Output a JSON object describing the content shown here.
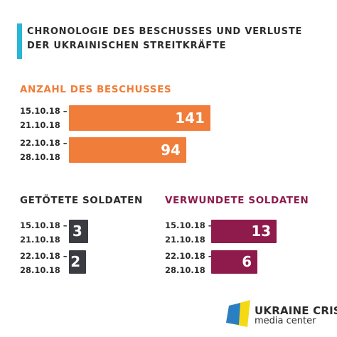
{
  "header": {
    "title_lines": [
      "CHRONOLOGIE DES BESCHUSSES UND VERLUSTE",
      "DER UKRAINISCHEN STREITKRÄFTE"
    ]
  },
  "chart_data": [
    {
      "type": "bar",
      "orientation": "horizontal",
      "title": "ANZAHL DES BESCHUSSES",
      "categories": [
        "15.10.18 –\n21.10.18",
        "22.10.18 –\n28.10.18"
      ],
      "values": [
        141,
        94
      ],
      "color": "#f07d3a"
    },
    {
      "type": "bar",
      "orientation": "horizontal",
      "title": "GETÖTETE SOLDATEN",
      "categories": [
        "15.10.18 –\n21.10.18",
        "22.10.18 –\n28.10.18"
      ],
      "values": [
        3,
        2
      ],
      "color": "#3b3b42"
    },
    {
      "type": "bar",
      "orientation": "horizontal",
      "title": "VERWUNDETE SOLDATEN",
      "categories": [
        "15.10.18 –\n21.10.18",
        "22.10.18 –\n28.10.18"
      ],
      "values": [
        13,
        6
      ],
      "color": "#8e1b4c"
    }
  ],
  "footer": {
    "logo_lines": [
      "UKRAINE CRISIS",
      "media center"
    ]
  }
}
